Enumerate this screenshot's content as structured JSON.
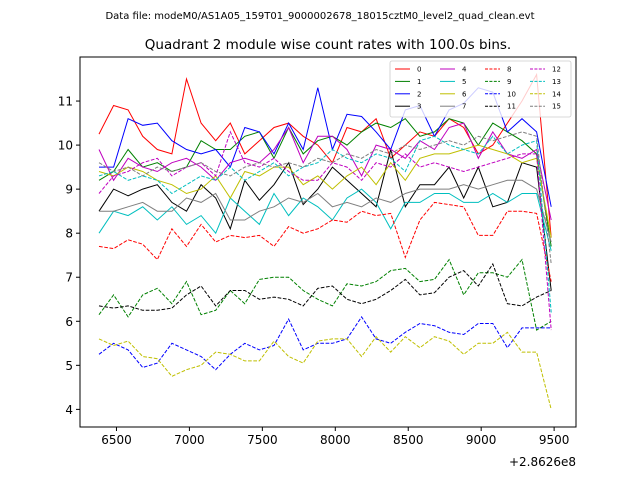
{
  "figure": {
    "suptitle": "Data file: modeM0/AS1A05_159T01_9000002678_18015cztM0_level2_quad_clean.evt"
  },
  "chart_data": {
    "type": "line",
    "title": "Quadrant 2 module wise count rates with 100.0s bins.",
    "xlabel": "",
    "ylabel": "",
    "x_offset_label": "+2.8626e8",
    "xlim": [
      6250,
      9650
    ],
    "ylim": [
      3.6,
      12.0
    ],
    "xticks": [
      6500,
      7000,
      7500,
      8000,
      8500,
      9000,
      9500
    ],
    "yticks": [
      4,
      5,
      6,
      7,
      8,
      9,
      10,
      11
    ],
    "grid": false,
    "legend_position": "top-right",
    "x": [
      6380,
      6480,
      6580,
      6680,
      6780,
      6880,
      6980,
      7080,
      7180,
      7280,
      7380,
      7480,
      7580,
      7680,
      7780,
      7880,
      7980,
      8080,
      8180,
      8280,
      8380,
      8480,
      8580,
      8680,
      8780,
      8880,
      8980,
      9080,
      9180,
      9280,
      9380,
      9480
    ],
    "series": [
      {
        "name": "0",
        "color": "#ff0000",
        "dashed": false,
        "values": [
          10.25,
          10.9,
          10.8,
          10.2,
          9.9,
          9.8,
          11.5,
          10.5,
          10.1,
          10.5,
          9.8,
          10.1,
          10.4,
          10.5,
          10.2,
          10.0,
          9.6,
          10.4,
          10.3,
          10.6,
          9.7,
          10.0,
          10.3,
          10.2,
          10.6,
          10.4,
          9.8,
          10.0,
          10.5,
          11.0,
          11.6,
          7.9
        ]
      },
      {
        "name": "1",
        "color": "#008000",
        "dashed": false,
        "values": [
          9.2,
          9.4,
          9.9,
          9.5,
          9.6,
          9.4,
          9.5,
          10.1,
          9.9,
          9.9,
          10.2,
          10.3,
          9.7,
          10.4,
          9.8,
          10.1,
          10.2,
          10.0,
          10.3,
          10.5,
          10.4,
          10.6,
          10.2,
          10.3,
          10.6,
          10.5,
          10.0,
          10.5,
          10.3,
          10.1,
          9.8,
          7.7
        ]
      },
      {
        "name": "2",
        "color": "#0000ff",
        "dashed": false,
        "values": [
          9.5,
          9.5,
          10.6,
          10.45,
          10.5,
          10.1,
          9.9,
          9.8,
          9.9,
          9.5,
          10.4,
          10.3,
          9.8,
          10.5,
          9.9,
          11.3,
          9.9,
          10.7,
          10.65,
          10.3,
          9.9,
          10.8,
          10.9,
          10.2,
          10.8,
          10.95,
          11.3,
          11.2,
          10.3,
          10.6,
          10.3,
          8.6
        ]
      },
      {
        "name": "3",
        "color": "#000000",
        "dashed": false,
        "values": [
          8.5,
          9.0,
          8.85,
          9.0,
          9.1,
          8.7,
          8.5,
          9.1,
          8.8,
          8.1,
          9.2,
          8.75,
          9.1,
          9.6,
          8.65,
          9.0,
          9.5,
          9.2,
          8.9,
          8.6,
          9.9,
          8.6,
          9.1,
          9.1,
          9.5,
          8.8,
          9.5,
          8.6,
          8.7,
          9.6,
          9.5,
          6.7
        ]
      },
      {
        "name": "4",
        "color": "#bf00bf",
        "dashed": false,
        "values": [
          9.9,
          9.2,
          9.7,
          9.5,
          9.4,
          9.6,
          9.7,
          9.5,
          9.2,
          9.6,
          9.7,
          9.6,
          9.9,
          10.4,
          9.6,
          10.2,
          10.2,
          9.9,
          9.3,
          10.0,
          9.9,
          9.7,
          10.1,
          9.9,
          10.4,
          10.5,
          9.7,
          10.3,
          9.8,
          9.7,
          9.9,
          8.3
        ]
      },
      {
        "name": "5",
        "color": "#00bfbf",
        "dashed": false,
        "values": [
          8.0,
          8.5,
          8.4,
          8.6,
          8.3,
          8.6,
          8.2,
          8.4,
          8.0,
          8.8,
          8.5,
          8.2,
          8.9,
          8.4,
          8.8,
          8.6,
          8.3,
          8.8,
          9.0,
          8.7,
          8.1,
          8.7,
          8.7,
          8.9,
          8.9,
          8.7,
          8.7,
          8.9,
          8.7,
          8.9,
          8.9,
          7.6
        ]
      },
      {
        "name": "6",
        "color": "#bfbf00",
        "dashed": false,
        "values": [
          9.4,
          9.3,
          9.5,
          9.4,
          9.2,
          9.1,
          8.9,
          9.0,
          9.3,
          8.8,
          9.4,
          9.3,
          9.5,
          9.5,
          9.1,
          9.3,
          9.0,
          9.3,
          9.5,
          9.1,
          9.6,
          9.2,
          9.7,
          9.8,
          9.8,
          9.9,
          10.0,
          9.9,
          9.8,
          9.6,
          9.7,
          7.9
        ]
      },
      {
        "name": "7",
        "color": "#7f7f7f",
        "dashed": false,
        "values": [
          8.5,
          8.5,
          8.6,
          8.7,
          8.5,
          8.5,
          8.8,
          8.7,
          8.9,
          8.3,
          8.3,
          8.5,
          8.6,
          8.8,
          8.7,
          8.9,
          8.6,
          8.7,
          8.6,
          8.8,
          8.7,
          8.9,
          9.0,
          9.0,
          9.0,
          9.1,
          9.0,
          9.1,
          9.2,
          9.2,
          9.0,
          7.8
        ]
      },
      {
        "name": "8",
        "color": "#ff0000",
        "dashed": true,
        "values": [
          7.7,
          7.65,
          7.85,
          7.75,
          7.4,
          8.1,
          7.7,
          8.2,
          7.8,
          7.95,
          7.9,
          7.95,
          7.7,
          8.15,
          8.0,
          8.1,
          8.3,
          8.25,
          8.5,
          8.4,
          8.45,
          7.45,
          8.3,
          8.7,
          8.65,
          8.6,
          7.95,
          7.95,
          8.5,
          8.5,
          8.45,
          6.9
        ]
      },
      {
        "name": "9",
        "color": "#008000",
        "dashed": true,
        "values": [
          6.15,
          6.6,
          6.1,
          6.6,
          6.75,
          6.4,
          6.9,
          6.15,
          6.25,
          6.7,
          6.4,
          6.95,
          7.0,
          7.0,
          6.7,
          6.5,
          6.35,
          6.85,
          6.8,
          6.9,
          7.15,
          7.2,
          6.9,
          6.95,
          7.4,
          6.6,
          7.1,
          7.1,
          7.0,
          7.4,
          5.8,
          6.0
        ]
      },
      {
        "name": "10",
        "color": "#0000ff",
        "dashed": true,
        "values": [
          5.25,
          5.5,
          5.35,
          4.95,
          5.05,
          5.5,
          5.35,
          5.2,
          4.9,
          5.25,
          5.5,
          5.35,
          5.45,
          6.05,
          5.35,
          5.5,
          5.5,
          5.6,
          6.1,
          5.6,
          5.5,
          5.75,
          5.95,
          5.9,
          5.75,
          5.7,
          5.95,
          5.95,
          5.4,
          5.85,
          5.85,
          5.85
        ]
      },
      {
        "name": "11",
        "color": "#000000",
        "dashed": true,
        "values": [
          6.35,
          6.3,
          6.35,
          6.25,
          6.25,
          6.3,
          6.6,
          6.8,
          6.35,
          6.7,
          6.7,
          6.5,
          6.55,
          6.5,
          6.35,
          6.75,
          6.8,
          6.5,
          6.4,
          6.5,
          6.7,
          6.95,
          6.6,
          6.65,
          7.0,
          7.15,
          6.8,
          7.3,
          6.4,
          6.35,
          6.55,
          6.7
        ]
      },
      {
        "name": "12",
        "color": "#bf00bf",
        "dashed": true,
        "values": [
          8.9,
          9.3,
          9.4,
          9.6,
          9.7,
          9.3,
          9.5,
          9.6,
          9.3,
          10.3,
          9.6,
          9.5,
          9.7,
          9.4,
          9.2,
          9.2,
          9.6,
          9.5,
          9.2,
          9.6,
          9.5,
          9.8,
          9.5,
          9.6,
          9.5,
          9.4,
          9.5,
          9.6,
          9.7,
          9.8,
          9.8,
          5.8
        ]
      },
      {
        "name": "13",
        "color": "#00bfbf",
        "dashed": true,
        "values": [
          9.3,
          9.4,
          9.2,
          9.3,
          9.2,
          8.9,
          9.1,
          9.3,
          9.2,
          9.5,
          9.2,
          9.4,
          9.6,
          9.3,
          9.5,
          9.6,
          9.9,
          9.7,
          9.6,
          9.8,
          9.7,
          9.4,
          10.1,
          10.2,
          10.0,
          9.9,
          9.8,
          10.2,
          9.8,
          10.0,
          10.1,
          6.2
        ]
      },
      {
        "name": "14",
        "color": "#bfbf00",
        "dashed": true,
        "values": [
          5.6,
          5.45,
          5.55,
          5.2,
          5.15,
          4.75,
          4.9,
          5.0,
          5.3,
          5.25,
          5.1,
          5.1,
          5.55,
          5.2,
          5.05,
          5.55,
          5.6,
          5.6,
          5.2,
          5.65,
          5.3,
          5.65,
          5.4,
          5.65,
          5.55,
          5.25,
          5.5,
          5.5,
          5.75,
          5.3,
          5.3,
          4.0
        ]
      },
      {
        "name": "15",
        "color": "#7f7f7f",
        "dashed": true,
        "values": [
          9.6,
          9.4,
          9.5,
          9.3,
          9.5,
          9.4,
          9.5,
          9.6,
          9.4,
          9.3,
          9.5,
          9.6,
          9.5,
          9.6,
          9.5,
          9.7,
          9.6,
          9.8,
          9.7,
          9.9,
          9.8,
          10.0,
          9.9,
          10.0,
          10.1,
          10.0,
          10.2,
          10.1,
          10.2,
          10.3,
          10.2,
          7.3
        ]
      }
    ]
  }
}
